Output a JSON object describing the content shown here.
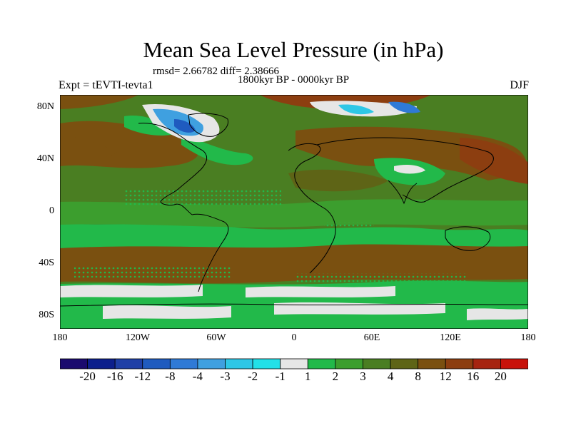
{
  "title": "Mean Sea Level Pressure (in hPa)",
  "stats": "rmsd= 2.66782 diff= 2.38666",
  "subtitle": "1800kyr BP - 0000kyr BP",
  "left_label": "Expt = tEVTI-tevta1",
  "right_label": "DJF",
  "lat_labels": [
    "80N",
    "40N",
    "0",
    "40S",
    "80S"
  ],
  "lon_labels": [
    "180",
    "120W",
    "60W",
    "0",
    "60E",
    "120E",
    "180"
  ],
  "colorbar": {
    "labels": [
      "-20",
      "-16",
      "-12",
      "-8",
      "-4",
      "-3",
      "-2",
      "-1",
      "1",
      "2",
      "3",
      "4",
      "8",
      "12",
      "16",
      "20"
    ],
    "colors": [
      "#1a0a6e",
      "#0c1f8c",
      "#1f3fa6",
      "#1f5bbf",
      "#2f7ad6",
      "#3fa0e0",
      "#2ec7e6",
      "#22e0e8",
      "#e6e6e6",
      "#22b94a",
      "#3c9e2e",
      "#4a7e22",
      "#5e6416",
      "#7a5010",
      "#8c3e10",
      "#a62410",
      "#c8120a"
    ]
  },
  "colors": {
    "neutral": "#e6e6e6",
    "green_light": "#22b94a",
    "green_mid": "#3c9e2e",
    "green_dark": "#4a7e22",
    "olive": "#5e6416",
    "brown": "#7a5010",
    "brown_dark": "#8c3e10",
    "blue": "#2f7ad6",
    "cyan": "#3fa0e0"
  }
}
